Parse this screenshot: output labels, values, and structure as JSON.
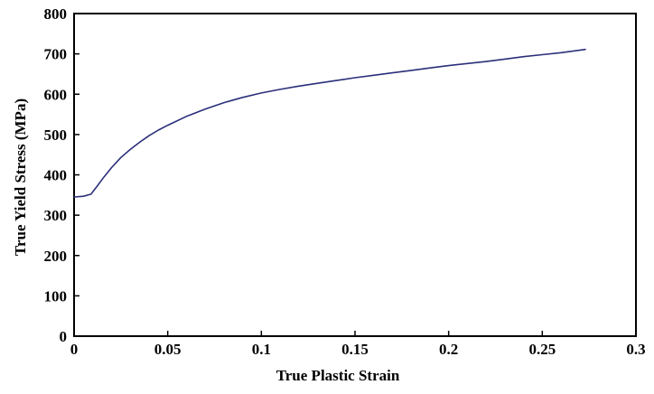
{
  "chart_data": {
    "type": "line",
    "title": "",
    "xlabel": "True Plastic Strain",
    "ylabel": "True Yield Stress (MPa)",
    "xlim": [
      0,
      0.3
    ],
    "ylim": [
      0,
      800
    ],
    "x_ticks": [
      0,
      0.05,
      0.1,
      0.15,
      0.2,
      0.25,
      0.3
    ],
    "x_tick_labels": [
      "0",
      "0.05",
      "0.1",
      "0.15",
      "0.2",
      "0.25",
      "0.3"
    ],
    "y_ticks": [
      0,
      100,
      200,
      300,
      400,
      500,
      600,
      700,
      800
    ],
    "y_tick_labels": [
      "0",
      "100",
      "200",
      "300",
      "400",
      "500",
      "600",
      "700",
      "800"
    ],
    "grid": false,
    "legend": "none",
    "series": [
      {
        "color": "#2b2f7a",
        "x": [
          0,
          0.005,
          0.009,
          0.012,
          0.016,
          0.02,
          0.025,
          0.03,
          0.035,
          0.04,
          0.045,
          0.05,
          0.06,
          0.07,
          0.08,
          0.09,
          0.1,
          0.11,
          0.12,
          0.13,
          0.14,
          0.15,
          0.16,
          0.17,
          0.18,
          0.19,
          0.2,
          0.21,
          0.22,
          0.23,
          0.24,
          0.25,
          0.26,
          0.273
        ],
        "y": [
          345,
          347,
          352,
          370,
          395,
          418,
          443,
          463,
          481,
          497,
          511,
          523,
          545,
          563,
          579,
          592,
          603,
          612,
          620,
          627,
          634,
          641,
          647,
          653,
          659,
          665,
          671,
          676,
          681,
          687,
          693,
          698,
          703,
          711
        ]
      }
    ]
  }
}
